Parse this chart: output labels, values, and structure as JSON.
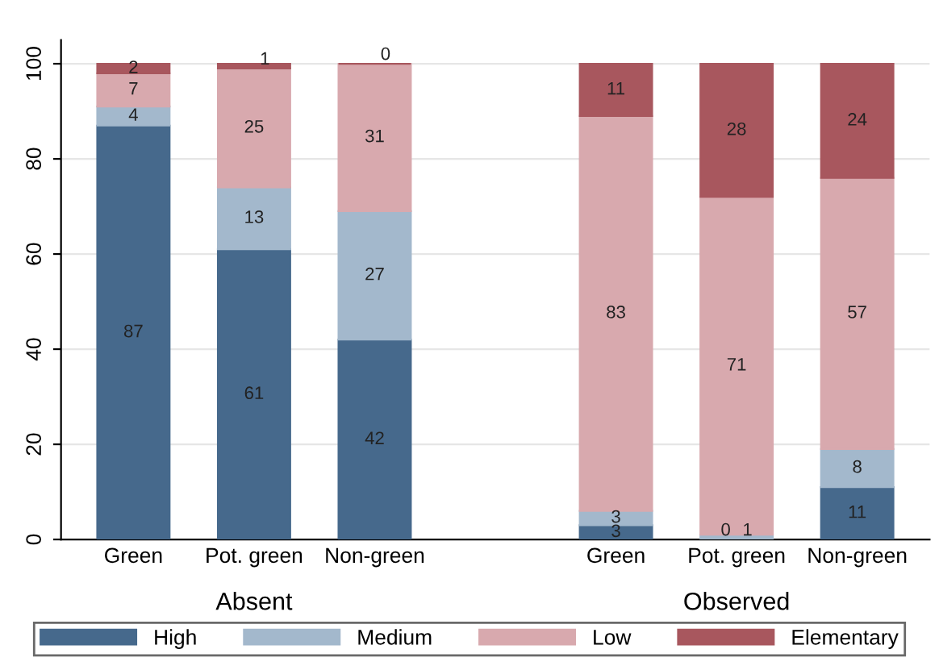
{
  "chart_data": {
    "type": "bar",
    "stacked": true,
    "categories": [
      "Green",
      "Pot. green",
      "Non-green",
      null,
      "Green",
      "Pot. green",
      "Non-green"
    ],
    "series": [
      {
        "name": "High",
        "color": "#46698c",
        "values": [
          87,
          61,
          42,
          null,
          3,
          0,
          11
        ]
      },
      {
        "name": "Medium",
        "color": "#a3b8cc",
        "values": [
          4,
          13,
          27,
          null,
          3,
          1,
          8
        ]
      },
      {
        "name": "Low",
        "color": "#d8a9ae",
        "values": [
          7,
          25,
          31,
          null,
          83,
          71,
          57
        ]
      },
      {
        "name": "Elementary",
        "color": "#a8575e",
        "values": [
          2,
          1,
          0,
          null,
          11,
          28,
          24
        ]
      }
    ],
    "data_labels": true,
    "ylim": [
      0,
      105
    ],
    "yticks": [
      0,
      20,
      40,
      60,
      80,
      100
    ],
    "grid": "y",
    "legend": "bottom",
    "annotations": [
      "Absent",
      "Observed"
    ]
  }
}
